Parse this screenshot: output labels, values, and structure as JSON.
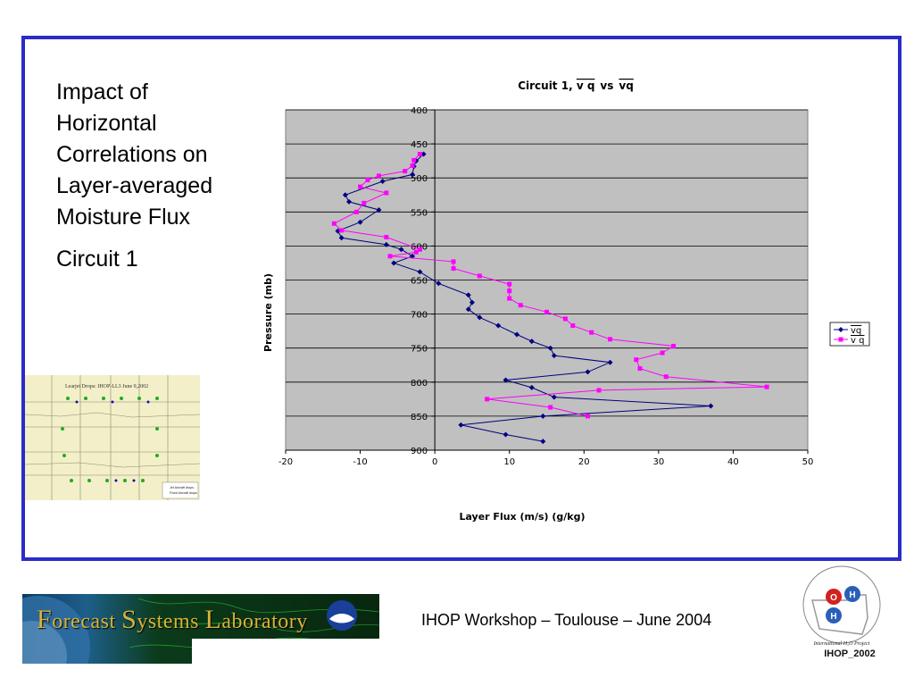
{
  "slide": {
    "title": "Impact of Horizontal Correlations on Layer-averaged Moisture Flux",
    "subtitle": "Circuit 1"
  },
  "map_thumb": {
    "title": "Learjet Drops: IHOP-LL3 June 9,2002",
    "legend": [
      "Jet Aircraft drops",
      "Fixed Aircraft drops"
    ]
  },
  "footer": {
    "banner_first_letter_1": "F",
    "banner_word_1": "orecast ",
    "banner_first_letter_2": "S",
    "banner_word_2": "ystems ",
    "banner_first_letter_3": "L",
    "banner_word_3": "aboratory",
    "workshop": "IHOP Workshop – Toulouse – June 2004",
    "logo_caption": "International H₂O Project",
    "logo_name": "IHOP_2002",
    "logo_letters": [
      "O",
      "H",
      "H"
    ]
  },
  "colors": {
    "frame": "#2b2bc8",
    "plot_bg": "#c0c0c0",
    "series_vq": "#000080",
    "series_v_q": "#ff00ff"
  },
  "chart_data": {
    "type": "line",
    "title_prefix": "Circuit 1, ",
    "title_vs": "vs",
    "xlabel": "Layer Flux (m/s) (g/kg)",
    "ylabel": "Pressure (mb)",
    "xlim": [
      -20,
      50
    ],
    "ylim": [
      900,
      400
    ],
    "y_inverted": true,
    "xticks": [
      -20,
      -10,
      0,
      10,
      20,
      30,
      40,
      50
    ],
    "yticks": [
      400,
      450,
      500,
      550,
      600,
      650,
      700,
      750,
      800,
      850,
      900
    ],
    "grid": "horizontal",
    "legend_placement": "right",
    "series": [
      {
        "name": "vq",
        "marker": "diamond",
        "x": [
          -1.5,
          -2.5,
          -2.8,
          -3,
          -7,
          -12,
          -11.5,
          -7.5,
          -10,
          -13,
          -12.5,
          -6.5,
          -4.5,
          -3,
          -5.5,
          -2,
          0.5,
          4.5,
          5,
          4.5,
          6,
          8.5,
          11,
          13,
          15.5,
          16,
          23.5,
          20.5,
          9.5,
          13,
          16,
          37,
          14.5,
          3.5,
          9.5,
          14.5
        ],
        "y": [
          465,
          475,
          483,
          495,
          505,
          525,
          535,
          547,
          565,
          578,
          588,
          598,
          605,
          615,
          625,
          638,
          655,
          672,
          683,
          693,
          705,
          717,
          730,
          740,
          750,
          761,
          771,
          785,
          797,
          808,
          822,
          835,
          850,
          863,
          877,
          887
        ]
      },
      {
        "name": "v q",
        "marker": "square",
        "x": [
          -2,
          -2.8,
          -3,
          -4,
          -7.5,
          -9,
          -10,
          -6.5,
          -9.5,
          -10.5,
          -13.5,
          -12.5,
          -6.5,
          -2,
          -2.5,
          -6,
          2.5,
          2.5,
          6,
          10,
          10,
          10,
          11.5,
          15,
          17.5,
          18.5,
          21,
          23.5,
          32,
          30.5,
          27,
          27.5,
          31,
          44.5,
          22,
          7,
          15.5,
          20.5
        ],
        "y": [
          465,
          474,
          482,
          490,
          497,
          503,
          513,
          522,
          537,
          550,
          567,
          577,
          587,
          605,
          609,
          615,
          623,
          633,
          644,
          656,
          666,
          677,
          687,
          697,
          707,
          717,
          727,
          737,
          747,
          757,
          767,
          780,
          792,
          807,
          812,
          825,
          837,
          850
        ]
      }
    ]
  }
}
